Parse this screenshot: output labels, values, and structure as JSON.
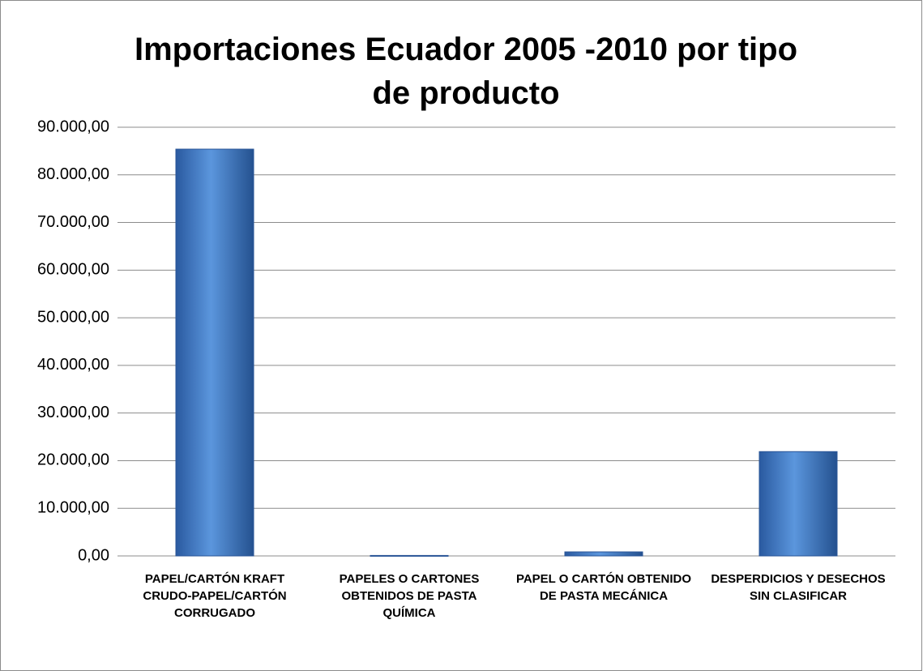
{
  "chart_data": {
    "type": "bar",
    "title": [
      "Importaciones Ecuador 2005 -2010 por tipo",
      "de producto"
    ],
    "categories": [
      "PAPEL/CARTÓN KRAFT CRUDO-PAPEL/CARTÓN CORRUGADO",
      "PAPELES O CARTONES OBTENIDOS DE PASTA QUÍMICA",
      "PAPEL O CARTÓN OBTENIDO DE PASTA MECÁNICA",
      "DESPERDICIOS Y DESECHOS SIN CLASIFICAR"
    ],
    "values": [
      85400,
      100,
      850,
      21900
    ],
    "color": "#3f78c4",
    "ylim": [
      0,
      90000
    ],
    "yticks": [
      {
        "value": 0,
        "label": "0,00"
      },
      {
        "value": 10000,
        "label": "10.000,00"
      },
      {
        "value": 20000,
        "label": "20.000,00"
      },
      {
        "value": 30000,
        "label": "30.000,00"
      },
      {
        "value": 40000,
        "label": "40.000,00"
      },
      {
        "value": 50000,
        "label": "50.000,00"
      },
      {
        "value": 60000,
        "label": "60.000,00"
      },
      {
        "value": 70000,
        "label": "70.000,00"
      },
      {
        "value": 80000,
        "label": "80.000,00"
      },
      {
        "value": 90000,
        "label": "90.000,00"
      }
    ],
    "grid": true
  }
}
